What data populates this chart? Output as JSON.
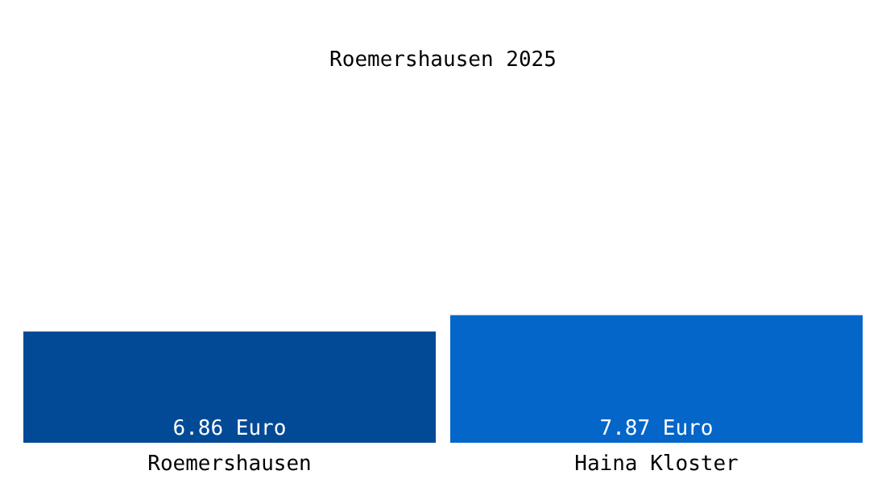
{
  "chart_data": {
    "type": "bar",
    "title": "Roemershausen 2025",
    "categories": [
      "Roemershausen",
      "Haina Kloster"
    ],
    "values": [
      6.86,
      7.87
    ],
    "colors": [
      "#034a96",
      "#0366c8"
    ],
    "value_labels": [
      "6.86 Euro",
      "7.87 Euro"
    ],
    "ylim": [
      0,
      27.3
    ],
    "legend": false,
    "grid": false
  }
}
